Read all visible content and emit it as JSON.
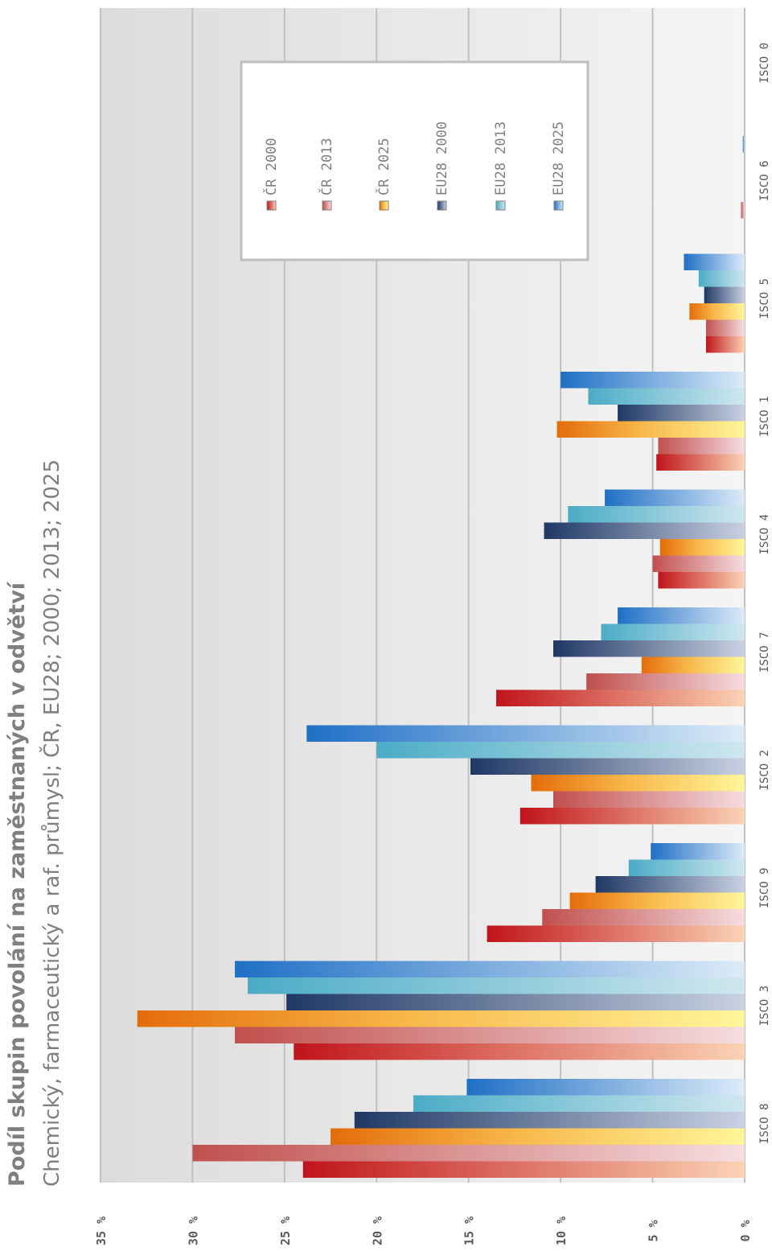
{
  "title": "Podíl skupin povolání na zaměstnaných v odvětví",
  "subtitle": "Chemický, farmaceutický a raf. průmysl; ČR, EU28; 2000; 2013; 2025",
  "colors": {
    "cr2000": "#c0141b",
    "cr2013": "#c0504d",
    "cr2025": "#e46c0a",
    "eu2000": "#1f3864",
    "eu2013": "#4bacc6",
    "eu2025": "#1f6fc5",
    "plot_light": "#f5f5f5",
    "plot_dark": "#dcdcdc",
    "grid": "#c0c0c0"
  },
  "chart_data": {
    "type": "bar",
    "orientation": "horizontal",
    "rotation": "page rotated 90 degrees counter-clockwise",
    "categories": [
      "ISCO 8",
      "ISCO 3",
      "ISCO 9",
      "ISCO 2",
      "ISCO 7",
      "ISCO 4",
      "ISCO 1",
      "ISCO 5",
      "ISCO 6",
      "ISCO 0"
    ],
    "series": [
      {
        "name": "ČR 2000",
        "color_key": "cr2000",
        "values": [
          24.0,
          24.5,
          14.0,
          12.2,
          13.5,
          4.7,
          4.8,
          2.1,
          0.0,
          0.0
        ]
      },
      {
        "name": "ČR 2013",
        "color_key": "cr2013",
        "values": [
          30.0,
          27.7,
          11.0,
          10.4,
          8.6,
          5.0,
          4.7,
          2.1,
          0.2,
          0.0
        ]
      },
      {
        "name": "ČR 2025",
        "color_key": "cr2025",
        "values": [
          22.5,
          33.0,
          9.5,
          11.6,
          5.6,
          4.6,
          10.2,
          3.0,
          0.0,
          0.0
        ]
      },
      {
        "name": "EU28 2000",
        "color_key": "eu2000",
        "values": [
          21.2,
          24.9,
          8.1,
          14.9,
          10.4,
          10.9,
          6.9,
          2.2,
          0.0,
          0.0
        ]
      },
      {
        "name": "EU28 2013",
        "color_key": "eu2013",
        "values": [
          18.0,
          27.0,
          6.3,
          20.0,
          7.8,
          9.6,
          8.5,
          2.5,
          0.0,
          0.0
        ]
      },
      {
        "name": "EU28 2025",
        "color_key": "eu2025",
        "values": [
          15.1,
          27.7,
          5.1,
          23.8,
          6.9,
          7.6,
          10.0,
          3.3,
          0.1,
          0.0
        ]
      }
    ],
    "value_ticks": [
      "0 %",
      "5 %",
      "10 %",
      "15 %",
      "20 %",
      "25 %",
      "30 %",
      "35 %"
    ],
    "xlim": [
      0,
      35
    ],
    "grid": true,
    "legend_position": "top-right"
  }
}
